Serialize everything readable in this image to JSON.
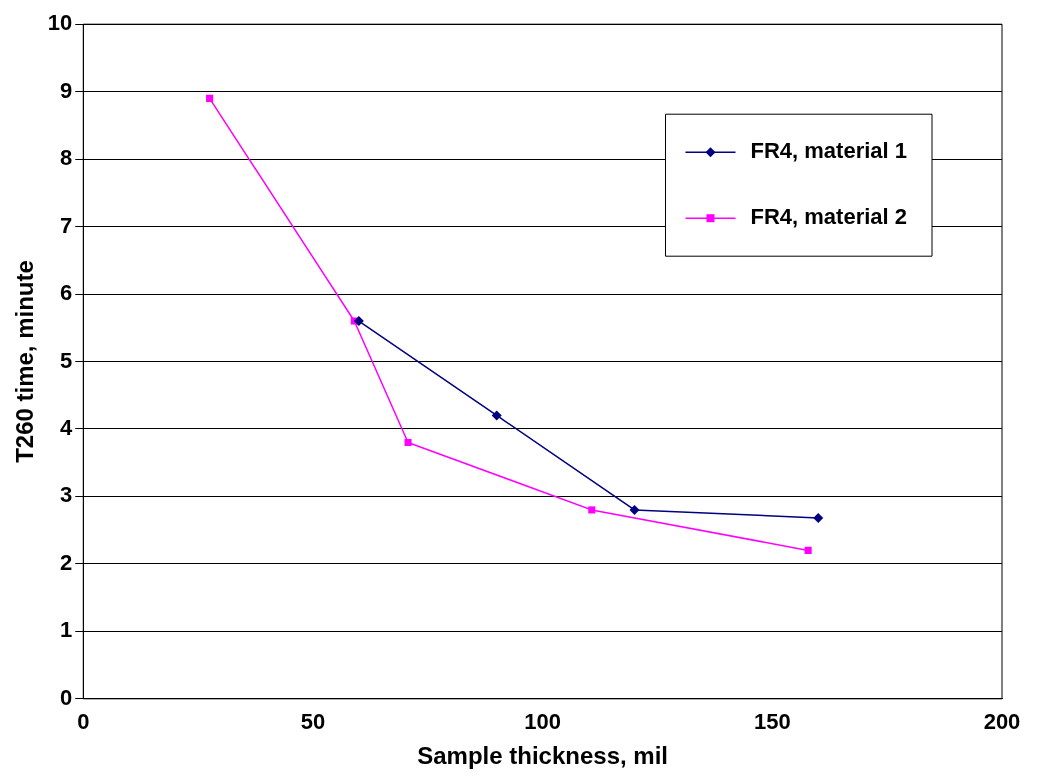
{
  "chart_data": {
    "type": "line",
    "xlabel": "Sample thickness, mil",
    "ylabel": "T260 time, minute",
    "xlim": [
      0,
      200
    ],
    "xticks": [
      0,
      50,
      100,
      150,
      200
    ],
    "ylim": [
      0,
      10
    ],
    "yticks": [
      0,
      1,
      2,
      3,
      4,
      5,
      6,
      7,
      8,
      9,
      10
    ],
    "grid": "y",
    "legend": "top right",
    "series": [
      {
        "name": "FR4, material 1",
        "color": "#000080",
        "marker": "diamond",
        "x": [
          60,
          90,
          120,
          160
        ],
        "values": [
          5.6,
          4.2,
          2.8,
          2.68
        ]
      },
      {
        "name": "FR4, material 2",
        "color": "#ff00ff",
        "marker": "square",
        "x": [
          27.5,
          59,
          70.7,
          110.7,
          157.8
        ],
        "values": [
          8.9,
          5.6,
          3.8,
          2.8,
          2.2
        ]
      }
    ]
  }
}
